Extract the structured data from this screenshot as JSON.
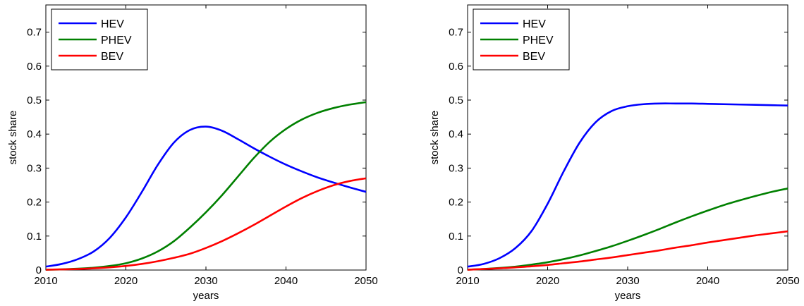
{
  "chart_data": [
    {
      "type": "line",
      "xlabel": "years",
      "ylabel": "stock share",
      "xlim": [
        2010,
        2050
      ],
      "ylim": [
        0,
        0.78
      ],
      "xticks": [
        "2010",
        "2020",
        "2030",
        "2040",
        "2050"
      ],
      "yticks": [
        "0",
        "0.1",
        "0.2",
        "0.3",
        "0.4",
        "0.5",
        "0.6",
        "0.7"
      ],
      "grid": false,
      "legend_position": "top-left",
      "x": [
        2010,
        2012,
        2014,
        2016,
        2018,
        2020,
        2022,
        2024,
        2026,
        2028,
        2030,
        2032,
        2034,
        2036,
        2038,
        2040,
        2042,
        2044,
        2046,
        2048,
        2050
      ],
      "series": [
        {
          "name": "HEV",
          "color": "#0000ff",
          "values": [
            0.01,
            0.018,
            0.032,
            0.055,
            0.095,
            0.155,
            0.23,
            0.31,
            0.375,
            0.412,
            0.422,
            0.41,
            0.385,
            0.358,
            0.333,
            0.31,
            0.29,
            0.272,
            0.257,
            0.243,
            0.23
          ]
        },
        {
          "name": "PHEV",
          "color": "#008000",
          "values": [
            0.001,
            0.002,
            0.004,
            0.007,
            0.012,
            0.02,
            0.034,
            0.055,
            0.085,
            0.125,
            0.17,
            0.22,
            0.275,
            0.33,
            0.378,
            0.415,
            0.443,
            0.463,
            0.477,
            0.487,
            0.494
          ]
        },
        {
          "name": "BEV",
          "color": "#ff0000",
          "values": [
            0.001,
            0.002,
            0.003,
            0.005,
            0.008,
            0.012,
            0.018,
            0.026,
            0.036,
            0.048,
            0.065,
            0.085,
            0.108,
            0.133,
            0.16,
            0.187,
            0.212,
            0.233,
            0.25,
            0.262,
            0.27
          ]
        }
      ]
    },
    {
      "type": "line",
      "xlabel": "years",
      "ylabel": "stock share",
      "xlim": [
        2010,
        2050
      ],
      "ylim": [
        0,
        0.78
      ],
      "xticks": [
        "2010",
        "2020",
        "2030",
        "2040",
        "2050"
      ],
      "yticks": [
        "0",
        "0.1",
        "0.2",
        "0.3",
        "0.4",
        "0.5",
        "0.6",
        "0.7"
      ],
      "grid": false,
      "legend_position": "top-left",
      "x": [
        2010,
        2012,
        2014,
        2016,
        2018,
        2020,
        2022,
        2024,
        2026,
        2028,
        2030,
        2032,
        2034,
        2036,
        2038,
        2040,
        2042,
        2044,
        2046,
        2048,
        2050
      ],
      "series": [
        {
          "name": "HEV",
          "color": "#0000ff",
          "values": [
            0.01,
            0.018,
            0.035,
            0.065,
            0.115,
            0.195,
            0.29,
            0.375,
            0.435,
            0.468,
            0.482,
            0.488,
            0.49,
            0.49,
            0.49,
            0.489,
            0.488,
            0.487,
            0.486,
            0.485,
            0.484
          ]
        },
        {
          "name": "PHEV",
          "color": "#008000",
          "values": [
            0.001,
            0.003,
            0.006,
            0.01,
            0.016,
            0.023,
            0.032,
            0.043,
            0.056,
            0.07,
            0.086,
            0.103,
            0.121,
            0.14,
            0.158,
            0.175,
            0.191,
            0.205,
            0.218,
            0.23,
            0.24
          ]
        },
        {
          "name": "BEV",
          "color": "#ff0000",
          "values": [
            0.001,
            0.003,
            0.005,
            0.008,
            0.011,
            0.015,
            0.02,
            0.025,
            0.031,
            0.037,
            0.044,
            0.051,
            0.058,
            0.066,
            0.073,
            0.081,
            0.088,
            0.095,
            0.102,
            0.108,
            0.114
          ]
        }
      ]
    }
  ]
}
